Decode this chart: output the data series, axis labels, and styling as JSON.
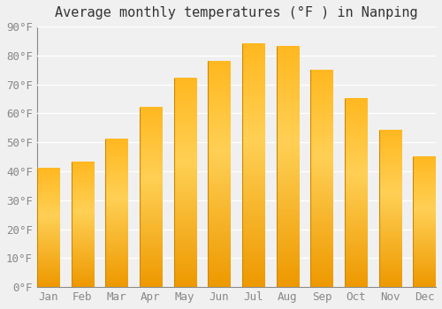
{
  "title": "Average monthly temperatures (°F ) in Nanping",
  "categories": [
    "Jan",
    "Feb",
    "Mar",
    "Apr",
    "May",
    "Jun",
    "Jul",
    "Aug",
    "Sep",
    "Oct",
    "Nov",
    "Dec"
  ],
  "values": [
    41,
    43,
    51,
    62,
    72,
    78,
    84,
    83,
    75,
    65,
    54,
    45
  ],
  "bar_color_main": "#FFA500",
  "bar_color_light": "#FFD966",
  "bar_edge_color": "#E08000",
  "background_color": "#F0F0F0",
  "grid_color": "#FFFFFF",
  "ylim": [
    0,
    90
  ],
  "yticks": [
    0,
    10,
    20,
    30,
    40,
    50,
    60,
    70,
    80,
    90
  ],
  "ytick_labels": [
    "0°F",
    "10°F",
    "20°F",
    "30°F",
    "40°F",
    "50°F",
    "60°F",
    "70°F",
    "80°F",
    "90°F"
  ],
  "title_fontsize": 11,
  "tick_fontsize": 9,
  "bar_width": 0.65
}
